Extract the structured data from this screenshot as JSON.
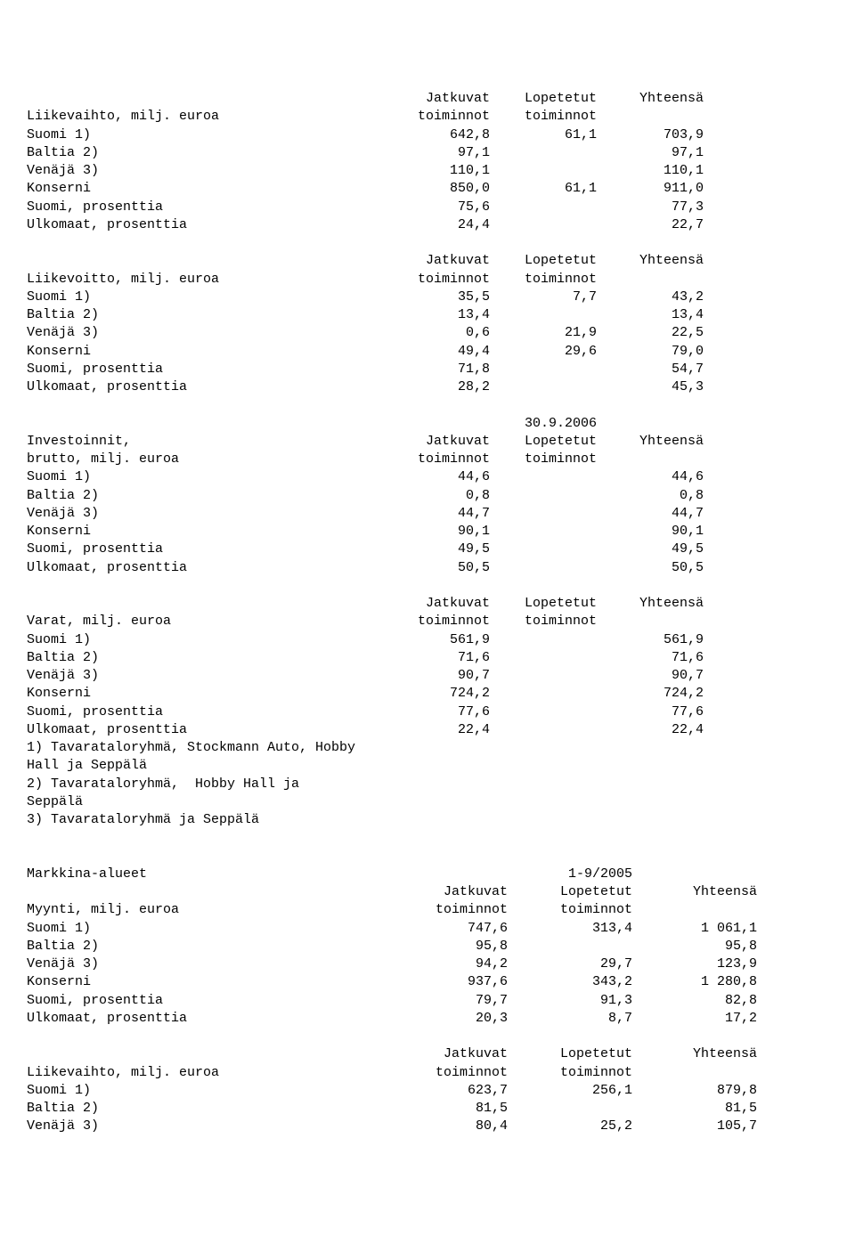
{
  "h": {
    "c1": "Jatkuvat",
    "c2": "Lopetetut",
    "c3": "Yhteensä",
    "sub1": "toiminnot",
    "sub2": "toiminnot"
  },
  "t1": {
    "title": "Liikevaihto, milj. euroa",
    "rows": [
      {
        "l": "Suomi 1)",
        "a": "642,8",
        "b": "61,1",
        "c": "703,9"
      },
      {
        "l": "Baltia 2)",
        "a": "97,1",
        "b": "",
        "c": "97,1"
      },
      {
        "l": "Venäjä 3)",
        "a": "110,1",
        "b": "",
        "c": "110,1"
      },
      {
        "l": "Konserni",
        "a": "850,0",
        "b": "61,1",
        "c": "911,0"
      },
      {
        "l": "Suomi, prosenttia",
        "a": "75,6",
        "b": "",
        "c": "77,3"
      },
      {
        "l": "Ulkomaat, prosenttia",
        "a": "24,4",
        "b": "",
        "c": "22,7"
      }
    ]
  },
  "t2": {
    "title": "Liikevoitto, milj. euroa",
    "rows": [
      {
        "l": "Suomi 1)",
        "a": "35,5",
        "b": "7,7",
        "c": "43,2"
      },
      {
        "l": "Baltia 2)",
        "a": "13,4",
        "b": "",
        "c": "13,4"
      },
      {
        "l": "Venäjä 3)",
        "a": "0,6",
        "b": "21,9",
        "c": "22,5"
      },
      {
        "l": "Konserni",
        "a": "49,4",
        "b": "29,6",
        "c": "79,0"
      },
      {
        "l": "Suomi, prosenttia",
        "a": "71,8",
        "b": "",
        "c": "54,7"
      },
      {
        "l": "Ulkomaat, prosenttia",
        "a": "28,2",
        "b": "",
        "c": "45,3"
      }
    ]
  },
  "t3": {
    "date": "30.9.2006",
    "title1": "Investoinnit,",
    "title2": "brutto, milj. euroa",
    "rows": [
      {
        "l": "Suomi 1)",
        "a": "44,6",
        "b": "",
        "c": "44,6"
      },
      {
        "l": "Baltia 2)",
        "a": "0,8",
        "b": "",
        "c": "0,8"
      },
      {
        "l": "Venäjä 3)",
        "a": "44,7",
        "b": "",
        "c": "44,7"
      },
      {
        "l": "Konserni",
        "a": "90,1",
        "b": "",
        "c": "90,1"
      },
      {
        "l": "Suomi, prosenttia",
        "a": "49,5",
        "b": "",
        "c": "49,5"
      },
      {
        "l": "Ulkomaat, prosenttia",
        "a": "50,5",
        "b": "",
        "c": "50,5"
      }
    ]
  },
  "t4": {
    "title": "Varat, milj. euroa",
    "rows": [
      {
        "l": "Suomi 1)",
        "a": "561,9",
        "b": "",
        "c": "561,9"
      },
      {
        "l": "Baltia 2)",
        "a": "71,6",
        "b": "",
        "c": "71,6"
      },
      {
        "l": "Venäjä 3)",
        "a": "90,7",
        "b": "",
        "c": "90,7"
      },
      {
        "l": "Konserni",
        "a": "724,2",
        "b": "",
        "c": "724,2"
      },
      {
        "l": "Suomi, prosenttia",
        "a": "77,6",
        "b": "",
        "c": "77,6"
      },
      {
        "l": "Ulkomaat, prosenttia",
        "a": "22,4",
        "b": "",
        "c": "22,4"
      }
    ],
    "notes": [
      "1) Tavarataloryhmä, Stockmann Auto, Hobby",
      "Hall ja Seppälä",
      "2) Tavarataloryhmä,  Hobby Hall ja",
      "Seppälä",
      "3) Tavarataloryhmä ja Seppälä"
    ]
  },
  "t5": {
    "heading": "Markkina-alueet",
    "period": "1-9/2005",
    "title": "Myynti, milj. euroa",
    "rows": [
      {
        "l": "Suomi 1)",
        "a": "747,6",
        "b": "313,4",
        "c": "1 061,1"
      },
      {
        "l": "Baltia 2)",
        "a": "95,8",
        "b": "",
        "c": "95,8"
      },
      {
        "l": "Venäjä 3)",
        "a": "94,2",
        "b": "29,7",
        "c": "123,9"
      },
      {
        "l": "Konserni",
        "a": "937,6",
        "b": "343,2",
        "c": "1 280,8"
      },
      {
        "l": "Suomi, prosenttia",
        "a": "79,7",
        "b": "91,3",
        "c": "82,8"
      },
      {
        "l": "Ulkomaat, prosenttia",
        "a": "20,3",
        "b": "8,7",
        "c": "17,2"
      }
    ]
  },
  "t6": {
    "title": "Liikevaihto, milj. euroa",
    "rows": [
      {
        "l": "Suomi 1)",
        "a": "623,7",
        "b": "256,1",
        "c": "879,8"
      },
      {
        "l": "Baltia 2)",
        "a": "81,5",
        "b": "",
        "c": "81,5"
      },
      {
        "l": "Venäjä 3)",
        "a": "80,4",
        "b": "25,2",
        "c": "105,7"
      }
    ]
  }
}
